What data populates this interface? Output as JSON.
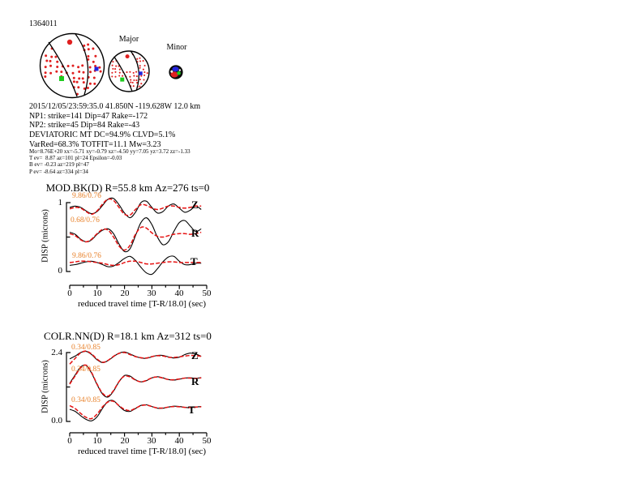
{
  "page": {
    "event_id": "1364011"
  },
  "beachballs": {
    "major_label": "Major",
    "minor_label": "Minor"
  },
  "colors": {
    "beachball_dot": "#e02020",
    "marker_red": "#e02020",
    "marker_green": "#1ecc1e",
    "marker_blue": "#2424dd",
    "trace_data": "#000000",
    "trace_synthetic": "#e61212",
    "fit_label": "#e8812a"
  },
  "event_info": {
    "lines": [
      "2015/12/05/23:59:35.0 41.850N -119.628W 12.0 km",
      "NP1: strike=141 Dip=47 Rake=-172",
      "NP2: strike=45 Dip=84 Rake=-43",
      "DEVIATORIC MT DC=94.9% CLVD=5.1%",
      "VarRed=68.3% TOTFIT=11.1 Mw=3.23"
    ]
  },
  "mt_details": {
    "lines": [
      "Mo=8.76E+20 xx=-5.71 xy=-0.79 xz=-4.50 yy=7.05 yz=3.72 zz=-1.33",
      "T ev=  8.87 az=101 pl=24 Epsilon=-0.03",
      "B ev= -0.23 az=219 pl=47",
      "P ev= -8.64 az=334 pl=34"
    ]
  },
  "chart_data": [
    {
      "type": "line",
      "title": "MOD.BK(D) R=55.8 km Az=276 ts=0",
      "xlabel": "reduced travel time [T-R/18.0] (sec)",
      "ylabel": "DISP (microns)",
      "xlim": [
        0,
        50
      ],
      "ylim": [
        0,
        1
      ],
      "x_ticks": [
        0,
        10,
        20,
        30,
        40,
        50
      ],
      "y_axis": {
        "top_label": "1",
        "bottom_label": "0"
      },
      "t_start": 0,
      "t_step": 2,
      "components": [
        {
          "name": "Z",
          "fit_label": "9.86/0.76",
          "data": [
            0.93,
            0.95,
            0.93,
            0.88,
            0.84,
            0.87,
            0.96,
            1.05,
            1.06,
            0.97,
            0.85,
            0.78,
            0.86,
            1.0,
            1.02,
            0.93,
            0.85,
            0.87,
            0.95,
            0.98,
            0.92,
            0.86,
            0.89,
            0.95,
            0.9
          ],
          "synthetic": [
            0.91,
            0.93,
            0.92,
            0.87,
            0.83,
            0.88,
            0.98,
            1.05,
            1.03,
            0.93,
            0.83,
            0.82,
            0.9,
            0.97,
            0.96,
            0.92,
            0.9,
            0.92,
            0.95,
            0.95,
            0.93,
            0.92,
            0.93,
            0.95,
            0.95
          ]
        },
        {
          "name": "R",
          "fit_label": "0.68/0.76",
          "data": [
            0.57,
            0.54,
            0.47,
            0.43,
            0.46,
            0.54,
            0.6,
            0.62,
            0.55,
            0.4,
            0.29,
            0.33,
            0.52,
            0.71,
            0.78,
            0.68,
            0.5,
            0.39,
            0.43,
            0.58,
            0.71,
            0.74,
            0.66,
            0.58,
            0.62
          ],
          "synthetic": [
            0.55,
            0.52,
            0.46,
            0.43,
            0.47,
            0.55,
            0.61,
            0.6,
            0.5,
            0.37,
            0.31,
            0.38,
            0.54,
            0.64,
            0.63,
            0.56,
            0.51,
            0.5,
            0.52,
            0.54,
            0.55,
            0.55,
            0.54,
            0.55,
            0.57
          ]
        },
        {
          "name": "T",
          "fit_label": "9.86/0.76",
          "data": [
            0.09,
            0.1,
            0.12,
            0.14,
            0.15,
            0.13,
            0.1,
            0.07,
            0.08,
            0.13,
            0.19,
            0.22,
            0.16,
            0.06,
            -0.02,
            -0.04,
            0.04,
            0.14,
            0.21,
            0.22,
            0.15,
            0.1,
            0.1,
            0.12,
            0.12
          ],
          "synthetic": [
            0.13,
            0.14,
            0.15,
            0.15,
            0.14,
            0.13,
            0.12,
            0.1,
            0.09,
            0.1,
            0.13,
            0.15,
            0.15,
            0.13,
            0.11,
            0.11,
            0.12,
            0.13,
            0.14,
            0.14,
            0.13,
            0.13,
            0.13,
            0.13,
            0.13
          ]
        }
      ]
    },
    {
      "type": "line",
      "title": "COLR.NN(D) R=18.1 km Az=312 ts=0",
      "xlabel": "reduced travel time [T-R/18.0] (sec)",
      "ylabel": "DISP (microns)",
      "xlim": [
        0,
        50
      ],
      "ylim": [
        0,
        2.4
      ],
      "x_ticks": [
        0,
        10,
        20,
        30,
        40,
        50
      ],
      "y_axis": {
        "top_label": "2.4",
        "bottom_label": "0.0"
      },
      "t_start": 0,
      "t_step": 2,
      "components": [
        {
          "name": "Z",
          "fit_label": "0.34/0.85",
          "data": [
            2.18,
            2.28,
            2.4,
            2.44,
            2.33,
            2.15,
            2.05,
            2.12,
            2.26,
            2.38,
            2.42,
            2.35,
            2.27,
            2.21,
            2.2,
            2.25,
            2.3,
            2.3,
            2.25,
            2.21,
            2.24,
            2.33,
            2.38,
            2.35,
            2.27
          ],
          "synthetic": [
            2.0,
            2.2,
            2.39,
            2.45,
            2.35,
            2.17,
            2.06,
            2.13,
            2.27,
            2.37,
            2.4,
            2.33,
            2.26,
            2.22,
            2.21,
            2.26,
            2.29,
            2.28,
            2.24,
            2.23,
            2.25,
            2.28,
            2.3,
            2.29,
            2.27
          ]
        },
        {
          "name": "R",
          "fit_label": "0.34/0.85",
          "data": [
            1.33,
            1.62,
            1.9,
            1.95,
            1.68,
            1.28,
            0.95,
            0.85,
            1.06,
            1.38,
            1.6,
            1.58,
            1.45,
            1.38,
            1.42,
            1.52,
            1.56,
            1.52,
            1.46,
            1.44,
            1.47,
            1.51,
            1.52,
            1.5,
            1.53
          ],
          "synthetic": [
            1.3,
            1.59,
            1.87,
            1.96,
            1.7,
            1.3,
            0.98,
            0.88,
            1.08,
            1.39,
            1.58,
            1.55,
            1.44,
            1.38,
            1.43,
            1.52,
            1.55,
            1.51,
            1.46,
            1.45,
            1.48,
            1.51,
            1.51,
            1.5,
            1.52
          ]
        },
        {
          "name": "T",
          "fit_label": "0.34/0.85",
          "data": [
            0.42,
            0.35,
            0.2,
            0.07,
            0.02,
            0.16,
            0.46,
            0.7,
            0.72,
            0.54,
            0.38,
            0.35,
            0.45,
            0.56,
            0.58,
            0.52,
            0.46,
            0.46,
            0.5,
            0.53,
            0.52,
            0.49,
            0.48,
            0.5,
            0.52
          ],
          "synthetic": [
            0.55,
            0.45,
            0.28,
            0.14,
            0.1,
            0.26,
            0.51,
            0.68,
            0.7,
            0.55,
            0.42,
            0.38,
            0.46,
            0.55,
            0.57,
            0.52,
            0.47,
            0.47,
            0.5,
            0.52,
            0.51,
            0.49,
            0.49,
            0.5,
            0.51
          ]
        }
      ]
    }
  ]
}
